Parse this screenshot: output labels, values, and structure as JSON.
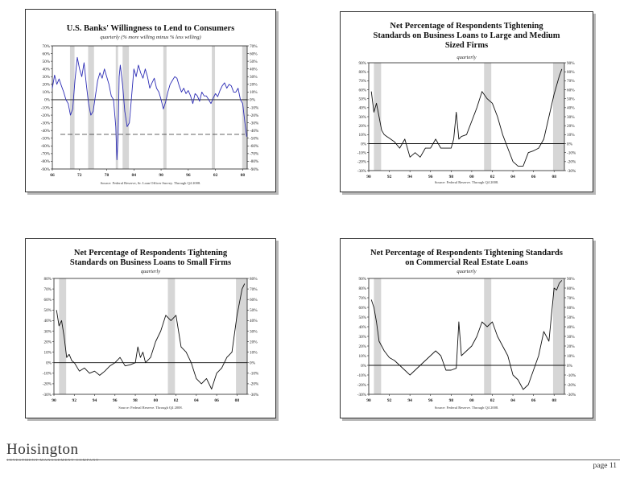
{
  "chart_data": [
    {
      "type": "line",
      "title": "U.S. Banks' Willingness to Lend to Consumers",
      "subtitle": "quarterly (% more willing minus % less willing)",
      "source": "Source: Federal Reserve, Sr. Loan Officer Survey. Through Q4 2008.",
      "xlim": [
        1966,
        2009
      ],
      "ylim": [
        -90,
        70
      ],
      "yticks": [
        "70%",
        "60%",
        "50%",
        "40%",
        "30%",
        "20%",
        "10%",
        "0%",
        "-10%",
        "-20%",
        "-30%",
        "-40%",
        "-50%",
        "-60%",
        "-70%",
        "-80%",
        "-90%"
      ],
      "xticks": [
        "66",
        "72",
        "78",
        "84",
        "90",
        "96",
        "02",
        "08"
      ],
      "xtick_values": [
        1966,
        1972,
        1978,
        1984,
        1990,
        1996,
        2002,
        2008
      ],
      "reference_line": -45,
      "line_color": "#2d2db5",
      "recessions": [
        [
          1969.9,
          1970.9
        ],
        [
          1973.9,
          1975.2
        ],
        [
          1980.0,
          1980.5
        ],
        [
          1981.5,
          1982.9
        ],
        [
          1990.5,
          1991.2
        ],
        [
          2001.2,
          2001.9
        ],
        [
          2007.9,
          2009.0
        ]
      ],
      "series": [
        {
          "x": [
            1966,
            1966.5,
            1967,
            1967.5,
            1968,
            1968.5,
            1969,
            1969.5,
            1970,
            1970.5,
            1971,
            1971.5,
            1972,
            1972.5,
            1973,
            1973.5,
            1974,
            1974.5,
            1975,
            1975.5,
            1976,
            1976.5,
            1977,
            1977.5,
            1978,
            1978.5,
            1979,
            1979.5,
            1980,
            1980.25,
            1980.5,
            1980.75,
            1981,
            1981.5,
            1982,
            1982.5,
            1983,
            1983.5,
            1984,
            1984.5,
            1985,
            1985.5,
            1986,
            1986.5,
            1987,
            1987.5,
            1988,
            1988.5,
            1989,
            1989.5,
            1990,
            1990.5,
            1991,
            1991.5,
            1992,
            1992.5,
            1993,
            1993.5,
            1994,
            1994.5,
            1995,
            1995.5,
            1996,
            1996.5,
            1997,
            1997.5,
            1998,
            1998.5,
            1999,
            1999.5,
            2000,
            2000.5,
            2001,
            2001.5,
            2002,
            2002.5,
            2003,
            2003.5,
            2004,
            2004.5,
            2005,
            2005.5,
            2006,
            2006.5,
            2007,
            2007.5,
            2008,
            2008.5,
            2008.9
          ],
          "y": [
            15,
            32,
            20,
            27,
            18,
            10,
            0,
            -5,
            -20,
            -12,
            25,
            55,
            40,
            30,
            48,
            20,
            -5,
            -20,
            -15,
            5,
            25,
            35,
            28,
            40,
            30,
            20,
            5,
            0,
            -35,
            -78,
            -50,
            30,
            45,
            20,
            -15,
            -35,
            -30,
            5,
            40,
            30,
            45,
            35,
            28,
            40,
            30,
            15,
            22,
            28,
            15,
            10,
            0,
            -12,
            -3,
            10,
            20,
            25,
            30,
            28,
            18,
            10,
            15,
            8,
            12,
            5,
            -5,
            8,
            5,
            -2,
            10,
            5,
            5,
            0,
            -5,
            2,
            8,
            4,
            12,
            18,
            22,
            15,
            20,
            18,
            10,
            10,
            15,
            0,
            -5,
            -30,
            -48
          ]
        }
      ]
    },
    {
      "type": "line",
      "title": "Net Percentage of Respondents Tightening Standards on Business Loans to Large and Medium Sized Firms",
      "subtitle": "quarterly",
      "source": "Source: Federal Reserve. Through Q4 2008.",
      "xlim": [
        1990,
        2009
      ],
      "ylim": [
        -30,
        90
      ],
      "yticks": [
        "90%",
        "80%",
        "70%",
        "60%",
        "50%",
        "40%",
        "30%",
        "20%",
        "10%",
        "0%",
        "-10%",
        "-20%",
        "-30%"
      ],
      "xticks": [
        "90",
        "92",
        "94",
        "96",
        "98",
        "00",
        "02",
        "04",
        "06",
        "08"
      ],
      "xtick_values": [
        1990,
        1992,
        1994,
        1996,
        1998,
        2000,
        2002,
        2004,
        2006,
        2008
      ],
      "reference_line": 0,
      "line_color": "#111111",
      "recessions": [
        [
          1990.5,
          1991.2
        ],
        [
          2001.2,
          2001.9
        ],
        [
          2007.9,
          2009.0
        ]
      ],
      "series": [
        {
          "x": [
            1990.25,
            1990.5,
            1990.75,
            1991,
            1991.25,
            1991.5,
            1991.75,
            1992,
            1992.5,
            1993,
            1993.5,
            1994,
            1994.5,
            1995,
            1995.5,
            1996,
            1996.5,
            1997,
            1997.5,
            1998,
            1998.25,
            1998.5,
            1998.75,
            1999,
            1999.5,
            2000,
            2000.5,
            2001,
            2001.5,
            2002,
            2002.5,
            2003,
            2003.5,
            2004,
            2004.5,
            2005,
            2005.5,
            2006,
            2006.5,
            2007,
            2007.5,
            2008,
            2008.5,
            2008.75
          ],
          "y": [
            58,
            35,
            45,
            30,
            15,
            10,
            8,
            6,
            2,
            -5,
            5,
            -15,
            -10,
            -15,
            -5,
            -5,
            5,
            -5,
            -5,
            -5,
            5,
            35,
            5,
            8,
            10,
            25,
            40,
            58,
            50,
            45,
            30,
            10,
            -5,
            -20,
            -25,
            -25,
            -10,
            -8,
            -5,
            5,
            30,
            55,
            75,
            83
          ]
        }
      ]
    },
    {
      "type": "line",
      "title": "Net Percentage of Respondents Tightening Standards on Business Loans to Small Firms",
      "subtitle": "quarterly",
      "source": "Source: Federal Reserve. Through Q4 2008.",
      "xlim": [
        1990,
        2009
      ],
      "ylim": [
        -30,
        80
      ],
      "yticks": [
        "80%",
        "70%",
        "60%",
        "50%",
        "40%",
        "30%",
        "20%",
        "10%",
        "0%",
        "-10%",
        "-20%",
        "-30%"
      ],
      "xticks": [
        "90",
        "92",
        "94",
        "96",
        "98",
        "00",
        "02",
        "04",
        "06",
        "08"
      ],
      "xtick_values": [
        1990,
        1992,
        1994,
        1996,
        1998,
        2000,
        2002,
        2004,
        2006,
        2008
      ],
      "reference_line": 0,
      "line_color": "#111111",
      "recessions": [
        [
          1990.5,
          1991.2
        ],
        [
          2001.2,
          2001.9
        ],
        [
          2007.9,
          2009.0
        ]
      ],
      "series": [
        {
          "x": [
            1990.25,
            1990.5,
            1990.75,
            1991,
            1991.25,
            1991.5,
            1991.75,
            1992,
            1992.5,
            1993,
            1993.5,
            1994,
            1994.5,
            1995,
            1995.5,
            1996,
            1996.5,
            1997,
            1997.5,
            1998,
            1998.25,
            1998.5,
            1998.75,
            1999,
            1999.5,
            2000,
            2000.5,
            2001,
            2001.5,
            2002,
            2002.5,
            2003,
            2003.5,
            2004,
            2004.5,
            2005,
            2005.5,
            2006,
            2006.5,
            2007,
            2007.5,
            2008,
            2008.5,
            2008.75
          ],
          "y": [
            50,
            35,
            40,
            25,
            5,
            8,
            2,
            0,
            -8,
            -5,
            -10,
            -8,
            -12,
            -8,
            -3,
            0,
            5,
            -3,
            -2,
            0,
            15,
            5,
            10,
            0,
            5,
            20,
            30,
            45,
            40,
            45,
            15,
            10,
            0,
            -15,
            -20,
            -15,
            -25,
            -10,
            -5,
            5,
            10,
            45,
            70,
            75
          ]
        }
      ]
    },
    {
      "type": "line",
      "title": "Net Percentage of Respondents Tightening Standards on Commercial Real Estate Loans",
      "subtitle": "quarterly",
      "source": "Source: Federal Reserve. Through Q4 2008.",
      "xlim": [
        1990,
        2009
      ],
      "ylim": [
        -30,
        90
      ],
      "yticks": [
        "90%",
        "80%",
        "70%",
        "60%",
        "50%",
        "40%",
        "30%",
        "20%",
        "10%",
        "0%",
        "-10%",
        "-20%",
        "-30%"
      ],
      "xticks": [
        "90",
        "92",
        "94",
        "96",
        "98",
        "00",
        "02",
        "04",
        "06",
        "08"
      ],
      "xtick_values": [
        1990,
        1992,
        1994,
        1996,
        1998,
        2000,
        2002,
        2004,
        2006,
        2008
      ],
      "reference_line": 0,
      "line_color": "#111111",
      "recessions": [
        [
          1990.5,
          1991.2
        ],
        [
          2001.2,
          2001.9
        ],
        [
          2007.9,
          2009.0
        ]
      ],
      "series": [
        {
          "x": [
            1990.25,
            1990.5,
            1990.75,
            1991,
            1991.5,
            1992,
            1992.5,
            1993,
            1993.5,
            1994,
            1994.5,
            1995,
            1995.5,
            1996,
            1996.5,
            1997,
            1997.5,
            1998,
            1998.5,
            1998.75,
            1999,
            1999.5,
            2000,
            2000.5,
            2001,
            2001.5,
            2002,
            2002.5,
            2003,
            2003.5,
            2004,
            2004.5,
            2005,
            2005.5,
            2006,
            2006.5,
            2007,
            2007.5,
            2008,
            2008.25,
            2008.5,
            2008.75
          ],
          "y": [
            68,
            60,
            45,
            25,
            15,
            8,
            5,
            0,
            -5,
            -10,
            -5,
            0,
            5,
            10,
            15,
            10,
            -5,
            -5,
            -3,
            45,
            10,
            15,
            20,
            30,
            45,
            40,
            45,
            30,
            20,
            10,
            -10,
            -15,
            -25,
            -20,
            -5,
            10,
            35,
            25,
            80,
            78,
            85,
            88
          ]
        }
      ]
    }
  ],
  "footer": {
    "logo_text": "Hoisington",
    "logo_sub": "INVESTMENT MANAGEMENT COMPANY",
    "page_label": "page 11"
  }
}
